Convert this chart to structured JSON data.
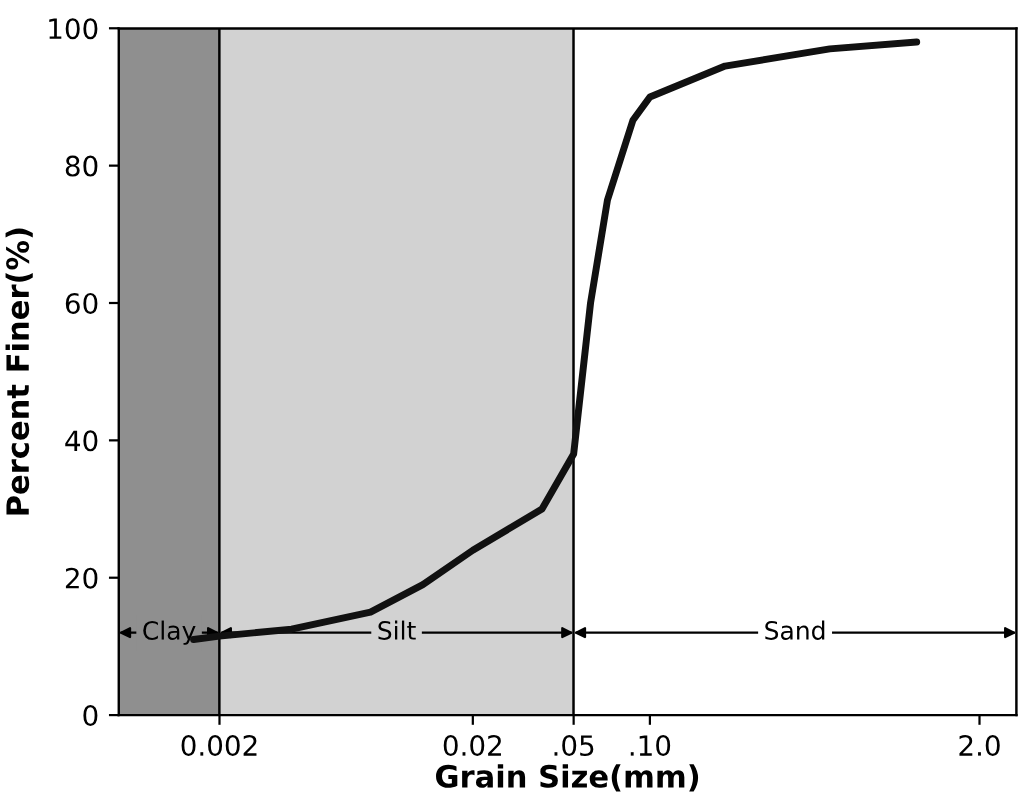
{
  "chart_data": {
    "type": "line",
    "xlabel": "Grain Size(mm)",
    "ylabel": "Percent Finer(%)",
    "x": [
      0.00158,
      0.002,
      0.00385,
      0.00789,
      0.0127,
      0.02,
      0.0375,
      0.05,
      0.0583,
      0.068,
      0.0857,
      0.1,
      0.198,
      0.513,
      1.13
    ],
    "series": [
      {
        "color": "#111111",
        "values": [
          11,
          11.5,
          12.5,
          15,
          19,
          24,
          30,
          38,
          60,
          75,
          86.6,
          90,
          94.5,
          97,
          98
        ]
      }
    ],
    "xlim": [
      0.0008,
      2.8
    ],
    "xticks": [
      {
        "value": 0.002,
        "label": "0.002"
      },
      {
        "value": 0.02,
        "label": "0.02"
      },
      {
        "value": 0.05,
        "label": ".05"
      },
      {
        "value": 0.1,
        "label": ".10"
      },
      {
        "value": 2.0,
        "label": "2.0"
      }
    ],
    "ylim": [
      0,
      100
    ],
    "yticks": [
      0,
      20,
      40,
      60,
      80,
      100
    ],
    "bands": [
      {
        "axis": "x",
        "from": 0.0008,
        "to": 0.002,
        "label": "Clay",
        "color": "#8f8f8f"
      },
      {
        "axis": "x",
        "from": 0.002,
        "to": 0.05,
        "label": "Silt",
        "color": "#d2d2d2"
      },
      {
        "axis": "x",
        "from": 0.05,
        "to": 2.8,
        "label": "Sand",
        "color": "#ffffff"
      }
    ],
    "log": "x",
    "grid": false,
    "legend": false,
    "marker": "none",
    "line_style": "solid"
  }
}
